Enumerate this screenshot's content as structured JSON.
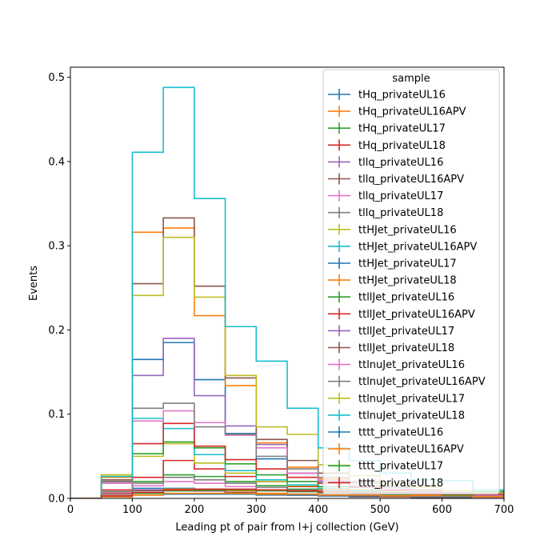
{
  "chart_data": {
    "type": "histogram-step",
    "xlabel": "Leading pt of pair from l+j collection (GeV)",
    "ylabel": "Events",
    "xlim": [
      0,
      700
    ],
    "ylim": [
      0,
      0.512
    ],
    "x_ticks": [
      0,
      100,
      200,
      300,
      400,
      500,
      600,
      700
    ],
    "y_ticks": [
      0.0,
      0.1,
      0.2,
      0.3,
      0.4,
      0.5
    ],
    "x_tick_labels": [
      "0",
      "100",
      "200",
      "300",
      "400",
      "500",
      "600",
      "700"
    ],
    "y_tick_labels": [
      "0.0",
      "0.1",
      "0.2",
      "0.3",
      "0.4",
      "0.5"
    ],
    "bin_edges": [
      0,
      50,
      100,
      150,
      200,
      250,
      300,
      350,
      400,
      450,
      500,
      550,
      600,
      650,
      700
    ],
    "grid": false,
    "legend": {
      "title": "sample",
      "placement": "top-right"
    },
    "series": [
      {
        "name": "tHq_privateUL16",
        "color": "#1f77b4",
        "values": [
          0,
          0.006,
          0.012,
          0.012,
          0.009,
          0.007,
          0.005,
          0.004,
          0.003,
          0.002,
          0.002,
          0.001,
          0.001,
          0.001
        ]
      },
      {
        "name": "tHq_privateUL16APV",
        "color": "#ff7f0e",
        "values": [
          0,
          0.006,
          0.01,
          0.011,
          0.011,
          0.009,
          0.006,
          0.005,
          0.004,
          0.003,
          0.002,
          0.002,
          0.001,
          0.001
        ]
      },
      {
        "name": "tHq_privateUL17",
        "color": "#2ca02c",
        "values": [
          0,
          0.008,
          0.02,
          0.028,
          0.026,
          0.02,
          0.015,
          0.011,
          0.008,
          0.006,
          0.004,
          0.003,
          0.002,
          0.002
        ]
      },
      {
        "name": "tHq_privateUL18",
        "color": "#d62728",
        "values": [
          0,
          0.01,
          0.025,
          0.045,
          0.035,
          0.026,
          0.02,
          0.014,
          0.01,
          0.007,
          0.005,
          0.004,
          0.003,
          0.002
        ]
      },
      {
        "name": "tllq_privateUL16",
        "color": "#9467bd",
        "values": [
          0,
          0.005,
          0.01,
          0.01,
          0.009,
          0.007,
          0.005,
          0.004,
          0.003,
          0.002,
          0.002,
          0.001,
          0.001,
          0.001
        ]
      },
      {
        "name": "tllq_privateUL16APV",
        "color": "#8c564b",
        "values": [
          0,
          0.005,
          0.009,
          0.01,
          0.009,
          0.007,
          0.005,
          0.004,
          0.003,
          0.002,
          0.002,
          0.001,
          0.001,
          0.001
        ]
      },
      {
        "name": "tllq_privateUL17",
        "color": "#e377c2",
        "values": [
          0,
          0.007,
          0.015,
          0.02,
          0.018,
          0.014,
          0.01,
          0.008,
          0.006,
          0.004,
          0.003,
          0.002,
          0.002,
          0.001
        ]
      },
      {
        "name": "tllq_privateUL18",
        "color": "#7f7f7f",
        "values": [
          0,
          0.008,
          0.018,
          0.025,
          0.022,
          0.018,
          0.013,
          0.01,
          0.007,
          0.005,
          0.004,
          0.003,
          0.002,
          0.002
        ]
      },
      {
        "name": "ttHJet_privateUL16",
        "color": "#bcbd22",
        "values": [
          0,
          0.028,
          0.05,
          0.065,
          0.042,
          0.03,
          0.02,
          0.015,
          0.011,
          0.008,
          0.006,
          0.004,
          0.003,
          0.002
        ]
      },
      {
        "name": "ttHJet_privateUL16APV",
        "color": "#17becf",
        "values": [
          0,
          0.025,
          0.095,
          0.083,
          0.052,
          0.033,
          0.022,
          0.016,
          0.012,
          0.009,
          0.006,
          0.005,
          0.004,
          0.003
        ]
      },
      {
        "name": "ttHJet_privateUL17",
        "color": "#1f77b4",
        "values": [
          0,
          0.02,
          0.165,
          0.185,
          0.141,
          0.077,
          0.047,
          0.03,
          0.02,
          0.014,
          0.01,
          0.007,
          0.005,
          0.004
        ]
      },
      {
        "name": "ttHJet_privateUL18",
        "color": "#ff7f0e",
        "values": [
          0,
          0.025,
          0.316,
          0.321,
          0.217,
          0.134,
          0.066,
          0.037,
          0.023,
          0.015,
          0.01,
          0.007,
          0.005,
          0.004
        ]
      },
      {
        "name": "ttllJet_privateUL16",
        "color": "#2ca02c",
        "values": [
          0,
          0.022,
          0.053,
          0.067,
          0.06,
          0.041,
          0.028,
          0.02,
          0.014,
          0.01,
          0.007,
          0.005,
          0.004,
          0.003
        ]
      },
      {
        "name": "ttllJet_privateUL16APV",
        "color": "#d62728",
        "values": [
          0,
          0.02,
          0.065,
          0.089,
          0.062,
          0.046,
          0.035,
          0.025,
          0.018,
          0.013,
          0.009,
          0.007,
          0.005,
          0.004
        ]
      },
      {
        "name": "ttllJet_privateUL17",
        "color": "#9467bd",
        "values": [
          0,
          0.018,
          0.146,
          0.19,
          0.122,
          0.086,
          0.064,
          0.03,
          0.021,
          0.015,
          0.011,
          0.008,
          0.006,
          0.004
        ]
      },
      {
        "name": "ttllJet_privateUL18",
        "color": "#8c564b",
        "values": [
          0,
          0.022,
          0.255,
          0.333,
          0.252,
          0.143,
          0.07,
          0.045,
          0.03,
          0.02,
          0.014,
          0.01,
          0.007,
          0.005
        ]
      },
      {
        "name": "ttlnuJet_privateUL16",
        "color": "#e377c2",
        "values": [
          0,
          0.018,
          0.092,
          0.104,
          0.09,
          0.075,
          0.06,
          0.03,
          0.021,
          0.015,
          0.011,
          0.008,
          0.006,
          0.004
        ]
      },
      {
        "name": "ttlnuJet_privateUL16APV",
        "color": "#7f7f7f",
        "values": [
          0,
          0.02,
          0.107,
          0.113,
          0.085,
          0.076,
          0.05,
          0.035,
          0.025,
          0.018,
          0.013,
          0.009,
          0.007,
          0.005
        ]
      },
      {
        "name": "ttlnuJet_privateUL17",
        "color": "#bcbd22",
        "values": [
          0,
          0.028,
          0.241,
          0.31,
          0.239,
          0.146,
          0.085,
          0.076,
          0.04,
          0.027,
          0.018,
          0.013,
          0.009,
          0.007
        ]
      },
      {
        "name": "ttlnuJet_privateUL18",
        "color": "#17becf",
        "values": [
          0,
          0.026,
          0.411,
          0.488,
          0.356,
          0.204,
          0.163,
          0.107,
          0.06,
          0.045,
          0.03,
          0.022,
          0.021,
          0.01
        ]
      },
      {
        "name": "tttt_privateUL16",
        "color": "#1f77b4",
        "values": [
          0,
          0.002,
          0.004,
          0.005,
          0.005,
          0.005,
          0.004,
          0.004,
          0.003,
          0.003,
          0.003,
          0.002,
          0.002,
          0.002
        ]
      },
      {
        "name": "tttt_privateUL16APV",
        "color": "#ff7f0e",
        "values": [
          0,
          0.002,
          0.004,
          0.006,
          0.006,
          0.006,
          0.005,
          0.005,
          0.004,
          0.004,
          0.003,
          0.003,
          0.003,
          0.002
        ]
      },
      {
        "name": "tttt_privateUL17",
        "color": "#2ca02c",
        "values": [
          0,
          0.003,
          0.006,
          0.009,
          0.01,
          0.01,
          0.009,
          0.008,
          0.007,
          0.006,
          0.005,
          0.005,
          0.004,
          0.008
        ]
      },
      {
        "name": "tttt_privateUL18",
        "color": "#d62728",
        "values": [
          0,
          0.003,
          0.007,
          0.01,
          0.011,
          0.011,
          0.01,
          0.009,
          0.008,
          0.007,
          0.006,
          0.005,
          0.005,
          0.005
        ]
      }
    ]
  }
}
